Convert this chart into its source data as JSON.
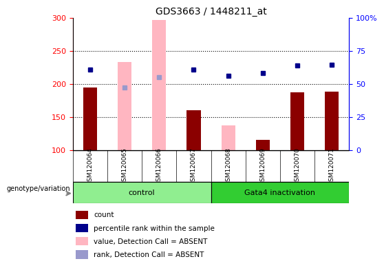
{
  "title": "GDS3663 / 1448211_at",
  "samples": [
    "GSM120064",
    "GSM120065",
    "GSM120066",
    "GSM120067",
    "GSM120068",
    "GSM120069",
    "GSM120070",
    "GSM120071"
  ],
  "groups": [
    {
      "label": "control",
      "samples": [
        "GSM120064",
        "GSM120065",
        "GSM120066",
        "GSM120067"
      ],
      "color": "#90EE90"
    },
    {
      "label": "Gata4 inactivation",
      "samples": [
        "GSM120068",
        "GSM120069",
        "GSM120070",
        "GSM120071"
      ],
      "color": "#00CC00"
    }
  ],
  "count_values": [
    195,
    null,
    null,
    160,
    null,
    115,
    187,
    188
  ],
  "rank_values": [
    222,
    null,
    null,
    222,
    212,
    216,
    228,
    229
  ],
  "absent_value_bars": [
    null,
    233,
    297,
    null,
    137,
    null,
    null,
    null
  ],
  "absent_rank_dots": [
    null,
    195,
    210,
    null,
    null,
    null,
    null,
    null
  ],
  "ylim_left": [
    100,
    300
  ],
  "ylim_right": [
    0,
    100
  ],
  "left_ticks": [
    100,
    150,
    200,
    250,
    300
  ],
  "right_ticks": [
    0,
    25,
    50,
    75,
    100
  ],
  "left_tick_labels": [
    "100",
    "150",
    "200",
    "250",
    "300"
  ],
  "right_tick_labels": [
    "0",
    "25",
    "50",
    "75",
    "100%"
  ],
  "bar_color_count": "#8B0000",
  "bar_color_absent": "#FFB6C1",
  "dot_color_rank": "#00008B",
  "dot_color_absent_rank": "#9999CC",
  "xlabel": "",
  "ylabel_left": "",
  "ylabel_right": "",
  "legend_items": [
    {
      "label": "count",
      "color": "#8B0000",
      "type": "square"
    },
    {
      "label": "percentile rank within the sample",
      "color": "#00008B",
      "type": "square"
    },
    {
      "label": "value, Detection Call = ABSENT",
      "color": "#FFB6C1",
      "type": "square"
    },
    {
      "label": "rank, Detection Call = ABSENT",
      "color": "#9999CC",
      "type": "square"
    }
  ],
  "genotype_label": "genotype/variation",
  "dotted_grid_values": [
    150,
    200,
    250
  ],
  "bar_width": 0.4
}
